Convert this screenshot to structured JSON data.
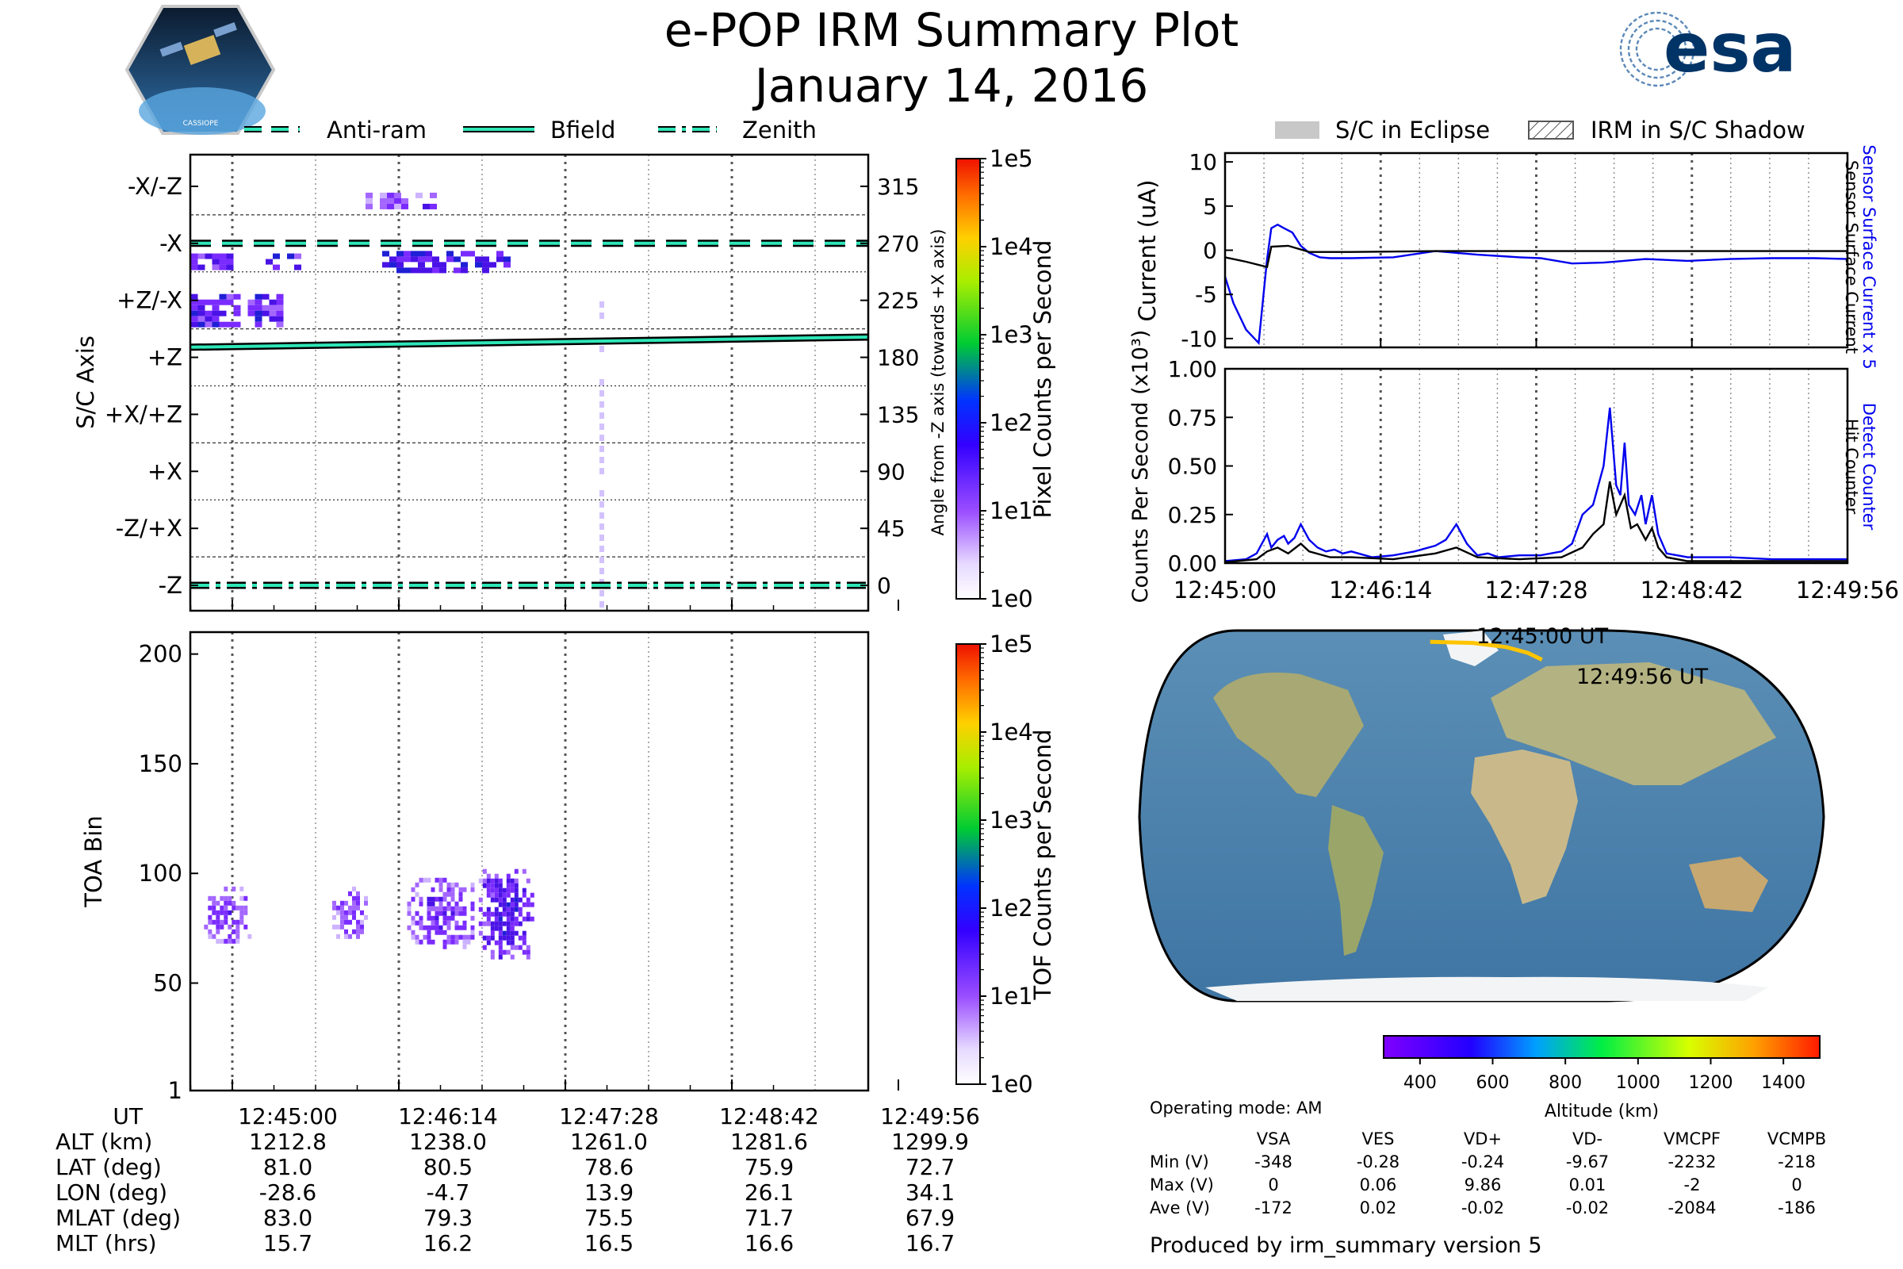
{
  "header": {
    "title": "e-POP IRM Summary Plot",
    "date": "January 14, 2016",
    "left_logo_text": "CASSIOPE",
    "right_logo_text": "esa"
  },
  "legend_top_left": [
    {
      "label": "Anti-ram",
      "style": "dashed"
    },
    {
      "label": "Bfield",
      "style": "solid"
    },
    {
      "label": "Zenith",
      "style": "dashdot"
    }
  ],
  "legend_top_right": [
    {
      "label": "S/C in Eclipse"
    },
    {
      "label": "IRM in S/C Shadow"
    }
  ],
  "colors": {
    "line_cyan": "#2ee6b8",
    "series_blue": "#0000ee",
    "series_black": "#000000",
    "eclipse_gray": "#c8c8c8",
    "track_yellow": "#ffc400"
  },
  "time_ticks": [
    "12:45:00",
    "12:46:14",
    "12:47:28",
    "12:48:42",
    "12:49:56"
  ],
  "chart_data": [
    {
      "type": "heatmap",
      "name_id": "pixel-spectrogram",
      "ylabel": "S/C Axis",
      "ylabel_right": "Angle from -Z axis (towards +X axis)",
      "ytick_labels": [
        "-X/-Z",
        "-X",
        "+Z/-X",
        "+Z",
        "+X/+Z",
        "+X",
        "-Z/+X",
        "-Z"
      ],
      "ytick_angles": [
        315,
        270,
        225,
        180,
        135,
        90,
        45,
        0
      ],
      "ylim": [
        -20,
        340
      ],
      "colorbar": {
        "label": "Pixel Counts per Second",
        "scale": "log",
        "ticks": [
          "1e0",
          "1e1",
          "1e2",
          "1e3",
          "1e4",
          "1e5"
        ]
      },
      "bfield_angle": [
        188,
        196
      ],
      "antiram_angle": 270,
      "zenith_angle": 0,
      "blobs": [
        {
          "t0": 0.0,
          "t1": 0.54,
          "a0": 208,
          "a1": 230,
          "level": 1.0
        },
        {
          "t0": 0.0,
          "t1": 0.22,
          "a0": 250,
          "a1": 262,
          "level": 0.8
        },
        {
          "t0": 0.45,
          "t1": 0.66,
          "a0": 250,
          "a1": 262,
          "level": 0.9
        },
        {
          "t0": 1.15,
          "t1": 1.9,
          "a0": 250,
          "a1": 264,
          "level": 1.6
        },
        {
          "t0": 1.05,
          "t1": 1.45,
          "a0": 300,
          "a1": 310,
          "level": 0.6
        }
      ]
    },
    {
      "type": "heatmap",
      "name_id": "tof-spectrogram",
      "ylabel": "TOA Bin",
      "ytick_labels": [
        "1",
        "50",
        "100",
        "150",
        "200"
      ],
      "ytick_values": [
        1,
        50,
        100,
        150,
        200
      ],
      "ylim": [
        1,
        210
      ],
      "colorbar": {
        "label": "TOF Counts per Second",
        "scale": "log",
        "ticks": [
          "1e0",
          "1e1",
          "1e2",
          "1e3",
          "1e4",
          "1e5"
        ]
      },
      "blobs": [
        {
          "t0": 0.08,
          "t1": 0.35,
          "b0": 68,
          "b1": 94,
          "level": 1.0
        },
        {
          "t0": 0.85,
          "t1": 1.05,
          "b0": 72,
          "b1": 94,
          "level": 0.8
        },
        {
          "t0": 1.3,
          "t1": 1.7,
          "b0": 66,
          "b1": 98,
          "level": 1.0
        },
        {
          "t0": 1.73,
          "t1": 2.05,
          "b0": 62,
          "b1": 102,
          "level": 1.6
        }
      ]
    },
    {
      "type": "line",
      "name_id": "current-panel",
      "ylabel": "Current (uA)",
      "ylabel_right_blue": "Sensor Surface Current x 5",
      "ylabel_right_black": "Sensor Surface Current",
      "ylim": [
        -11,
        11
      ],
      "ytick_labels": [
        "10",
        "5",
        "0",
        "-5",
        "-10"
      ],
      "ytick_values": [
        10,
        5,
        0,
        -5,
        -10
      ],
      "xlim": [
        0,
        296
      ],
      "series": [
        {
          "name": "Sensor Surface Current x 5",
          "color": "#0000ee",
          "x": [
            0,
            4,
            10,
            16,
            20,
            22,
            25,
            28,
            32,
            36,
            40,
            45,
            50,
            60,
            80,
            100,
            120,
            140,
            150,
            165,
            180,
            200,
            220,
            240,
            260,
            280,
            296
          ],
          "y": [
            -3,
            -6,
            -9,
            -10.5,
            -1,
            2.5,
            2.9,
            2.5,
            2,
            0.5,
            -0.3,
            -0.8,
            -0.9,
            -0.9,
            -0.8,
            -0.1,
            -0.5,
            -0.8,
            -0.9,
            -1.5,
            -1.4,
            -1.0,
            -1.2,
            -1.0,
            -0.9,
            -0.9,
            -1.0
          ]
        },
        {
          "name": "Sensor Surface Current",
          "color": "#000000",
          "x": [
            0,
            10,
            20,
            22,
            30,
            40,
            60,
            100,
            140,
            180,
            220,
            260,
            296
          ],
          "y": [
            -0.8,
            -1.3,
            -1.9,
            0.4,
            0.5,
            -0.2,
            -0.2,
            -0.1,
            -0.1,
            -0.1,
            -0.1,
            -0.1,
            -0.1
          ]
        }
      ]
    },
    {
      "type": "line",
      "name_id": "counts-panel",
      "ylabel": "Counts Per Second (x10³)",
      "ylabel_right_blue": "Detect Counter",
      "ylabel_right_black": "Hit Counter",
      "ylim": [
        0,
        1.0
      ],
      "ytick_labels": [
        "0.00",
        "0.25",
        "0.50",
        "0.75",
        "1.00"
      ],
      "ytick_values": [
        0,
        0.25,
        0.5,
        0.75,
        1.0
      ],
      "xlim": [
        0,
        296
      ],
      "series": [
        {
          "name": "Detect Counter",
          "color": "#0000ee",
          "x": [
            0,
            10,
            15,
            20,
            22,
            25,
            28,
            30,
            33,
            36,
            40,
            44,
            48,
            52,
            56,
            60,
            70,
            80,
            90,
            100,
            105,
            110,
            115,
            120,
            125,
            130,
            140,
            150,
            160,
            165,
            170,
            175,
            180,
            183,
            186,
            188,
            190,
            192,
            195,
            198,
            200,
            203,
            206,
            210,
            215,
            220,
            240,
            260,
            296
          ],
          "y": [
            0.01,
            0.02,
            0.05,
            0.15,
            0.08,
            0.12,
            0.14,
            0.1,
            0.13,
            0.2,
            0.12,
            0.08,
            0.06,
            0.07,
            0.05,
            0.06,
            0.03,
            0.04,
            0.06,
            0.09,
            0.12,
            0.2,
            0.1,
            0.04,
            0.05,
            0.03,
            0.04,
            0.04,
            0.06,
            0.1,
            0.25,
            0.3,
            0.5,
            0.8,
            0.4,
            0.35,
            0.62,
            0.3,
            0.25,
            0.35,
            0.2,
            0.35,
            0.15,
            0.05,
            0.04,
            0.03,
            0.03,
            0.02,
            0.02
          ]
        },
        {
          "name": "Hit Counter",
          "color": "#000000",
          "x": [
            0,
            15,
            20,
            25,
            30,
            36,
            40,
            50,
            60,
            80,
            100,
            110,
            120,
            140,
            160,
            170,
            175,
            180,
            183,
            186,
            190,
            193,
            196,
            200,
            203,
            206,
            210,
            220,
            240,
            296
          ],
          "y": [
            0.005,
            0.02,
            0.06,
            0.08,
            0.05,
            0.1,
            0.06,
            0.03,
            0.03,
            0.02,
            0.05,
            0.08,
            0.03,
            0.02,
            0.03,
            0.08,
            0.15,
            0.2,
            0.42,
            0.25,
            0.35,
            0.18,
            0.2,
            0.12,
            0.18,
            0.08,
            0.03,
            0.01,
            0.01,
            0.01
          ]
        }
      ]
    },
    {
      "type": "map",
      "name_id": "ground-track-map",
      "track_start_label": "12:45:00 UT",
      "track_end_label": "12:49:56 UT",
      "track_lat": [
        81.0,
        80.5,
        78.6,
        75.9,
        72.7
      ],
      "track_lon": [
        -28.6,
        -4.7,
        13.9,
        26.1,
        34.1
      ],
      "colorbar": {
        "label": "Altitude (km)",
        "ticks": [
          "400",
          "600",
          "800",
          "1000",
          "1200",
          "1400"
        ],
        "range": [
          300,
          1500
        ]
      }
    }
  ],
  "orbit_table": {
    "rows": [
      {
        "label": "UT",
        "values": [
          "12:45:00",
          "12:46:14",
          "12:47:28",
          "12:48:42",
          "12:49:56"
        ]
      },
      {
        "label": "ALT (km)",
        "values": [
          "1212.8",
          "1238.0",
          "1261.0",
          "1281.6",
          "1299.9"
        ]
      },
      {
        "label": "LAT (deg)",
        "values": [
          "81.0",
          "80.5",
          "78.6",
          "75.9",
          "72.7"
        ]
      },
      {
        "label": "LON (deg)",
        "values": [
          "-28.6",
          "-4.7",
          "13.9",
          "26.1",
          "34.1"
        ]
      },
      {
        "label": "MLAT (deg)",
        "values": [
          "83.0",
          "79.3",
          "75.5",
          "71.7",
          "67.9"
        ]
      },
      {
        "label": "MLT (hrs)",
        "values": [
          "15.7",
          "16.2",
          "16.5",
          "16.6",
          "16.7"
        ]
      }
    ]
  },
  "voltage_table": {
    "mode": "Operating mode: AM",
    "headers": [
      "VSA",
      "VES",
      "VD+",
      "VD-",
      "VMCPF",
      "VCMPB"
    ],
    "rows": [
      {
        "label": "Min (V)",
        "values": [
          "-348",
          "-0.28",
          "-0.24",
          "-9.67",
          "-2232",
          "-218"
        ]
      },
      {
        "label": "Max (V)",
        "values": [
          "0",
          "0.06",
          "9.86",
          "0.01",
          "-2",
          "0"
        ]
      },
      {
        "label": "Ave (V)",
        "values": [
          "-172",
          "0.02",
          "-0.02",
          "-0.02",
          "-2084",
          "-186"
        ]
      }
    ]
  },
  "footer": {
    "produced_by": "Produced by irm_summary version 5"
  }
}
